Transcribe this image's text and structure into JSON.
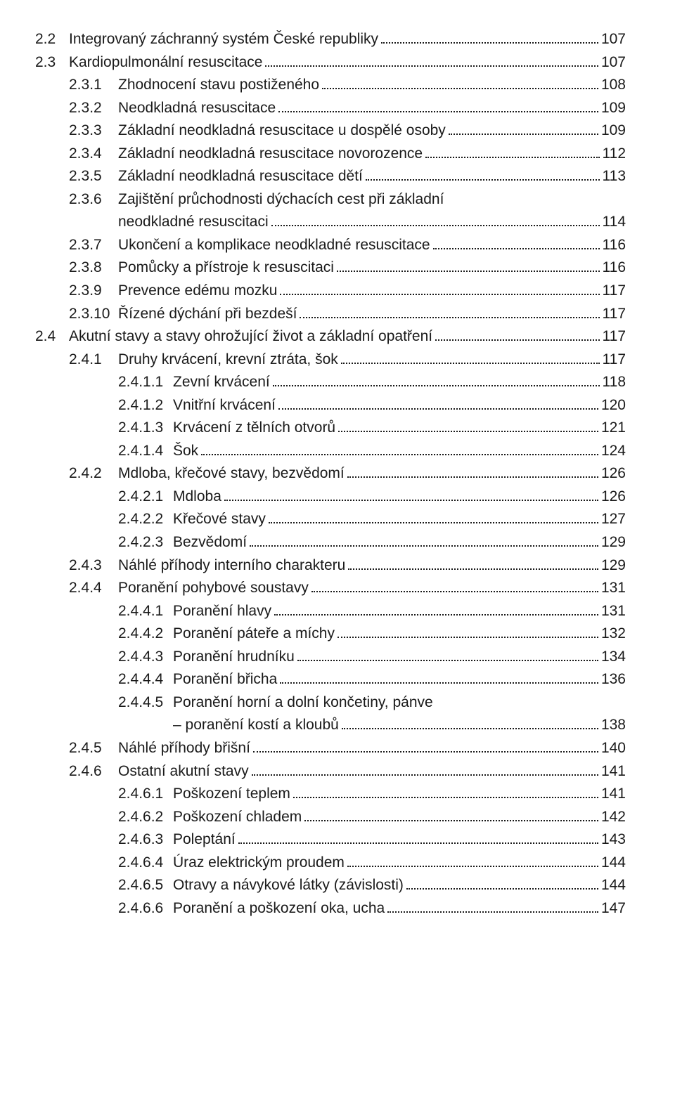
{
  "toc": [
    {
      "num": "2.2",
      "title": "Integrovaný záchranný systém České republiky",
      "page": "107",
      "lvl": 0
    },
    {
      "num": "2.3",
      "title": "Kardiopulmonální resuscitace",
      "page": "107",
      "lvl": 0
    },
    {
      "num": "2.3.1",
      "title": "Zhodnocení stavu postiženého",
      "page": "108",
      "lvl": 1
    },
    {
      "num": "2.3.2",
      "title": "Neodkladná resuscitace",
      "page": "109",
      "lvl": 1
    },
    {
      "num": "2.3.3",
      "title": "Základní neodkladná resuscitace u dospělé osoby",
      "page": "109",
      "lvl": 1
    },
    {
      "num": "2.3.4",
      "title": "Základní neodkladná resuscitace novorozence",
      "page": "112",
      "lvl": 1
    },
    {
      "num": "2.3.5",
      "title": "Základní neodkladná resuscitace dětí",
      "page": "113",
      "lvl": 1
    },
    {
      "num": "2.3.6",
      "title": "Zajištění průchodnosti dýchacích cest při základní",
      "title2": "neodkladné resuscitaci",
      "page": "114",
      "lvl": 1
    },
    {
      "num": "2.3.7",
      "title": "Ukončení a komplikace neodkladné resuscitace",
      "page": "116",
      "lvl": 1
    },
    {
      "num": "2.3.8",
      "title": "Pomůcky a přístroje k resuscitaci",
      "page": "116",
      "lvl": 1
    },
    {
      "num": "2.3.9",
      "title": "Prevence edému mozku",
      "page": "117",
      "lvl": 1
    },
    {
      "num": "2.3.10",
      "title": "Řízené dýchání při bezdeší",
      "page": "117",
      "lvl": 1
    },
    {
      "num": "2.4",
      "title": "Akutní stavy a stavy ohrožující život a základní opatření",
      "page": "117",
      "lvl": 0
    },
    {
      "num": "2.4.1",
      "title": "Druhy krvácení, krevní ztráta, šok",
      "page": "117",
      "lvl": 1
    },
    {
      "num": "2.4.1.1",
      "title": "Zevní krvácení",
      "page": "118",
      "lvl": 2
    },
    {
      "num": "2.4.1.2",
      "title": "Vnitřní krvácení",
      "page": "120",
      "lvl": 2
    },
    {
      "num": "2.4.1.3",
      "title": "Krvácení z tělních otvorů",
      "page": "121",
      "lvl": 2
    },
    {
      "num": "2.4.1.4",
      "title": "Šok",
      "page": "124",
      "lvl": 2
    },
    {
      "num": "2.4.2",
      "title": "Mdloba, křečové stavy, bezvědomí",
      "page": "126",
      "lvl": 1
    },
    {
      "num": "2.4.2.1",
      "title": "Mdloba",
      "page": "126",
      "lvl": 2
    },
    {
      "num": "2.4.2.2",
      "title": "Křečové stavy",
      "page": "127",
      "lvl": 2
    },
    {
      "num": "2.4.2.3",
      "title": "Bezvědomí",
      "page": "129",
      "lvl": 2
    },
    {
      "num": "2.4.3",
      "title": "Náhlé příhody interního charakteru",
      "page": "129",
      "lvl": 1
    },
    {
      "num": "2.4.4",
      "title": "Poranění pohybové soustavy",
      "page": "131",
      "lvl": 1
    },
    {
      "num": "2.4.4.1",
      "title": "Poranění hlavy",
      "page": "131",
      "lvl": 2
    },
    {
      "num": "2.4.4.2",
      "title": "Poranění páteře a míchy",
      "page": "132",
      "lvl": 2
    },
    {
      "num": "2.4.4.3",
      "title": "Poranění hrudníku",
      "page": "134",
      "lvl": 2
    },
    {
      "num": "2.4.4.4",
      "title": "Poranění břicha",
      "page": "136",
      "lvl": 2
    },
    {
      "num": "2.4.4.5",
      "title": "Poranění horní a dolní končetiny, pánve",
      "title2": "– poranění kostí a kloubů",
      "page": "138",
      "lvl": 2
    },
    {
      "num": "2.4.5",
      "title": "Náhlé příhody břišní",
      "page": "140",
      "lvl": 1
    },
    {
      "num": "2.4.6",
      "title": "Ostatní akutní stavy",
      "page": "141",
      "lvl": 1
    },
    {
      "num": "2.4.6.1",
      "title": "Poškození teplem",
      "page": "141",
      "lvl": 2
    },
    {
      "num": "2.4.6.2",
      "title": "Poškození chladem",
      "page": "142",
      "lvl": 2
    },
    {
      "num": "2.4.6.3",
      "title": "Poleptání",
      "page": "143",
      "lvl": 2
    },
    {
      "num": "2.4.6.4",
      "title": "Úraz elektrickým proudem",
      "page": "144",
      "lvl": 2
    },
    {
      "num": "2.4.6.5",
      "title": "Otravy a návykové látky (závislosti)",
      "page": "144",
      "lvl": 2
    },
    {
      "num": "2.4.6.6",
      "title": "Poranění a poškození oka, ucha",
      "page": "147",
      "lvl": 2
    }
  ]
}
